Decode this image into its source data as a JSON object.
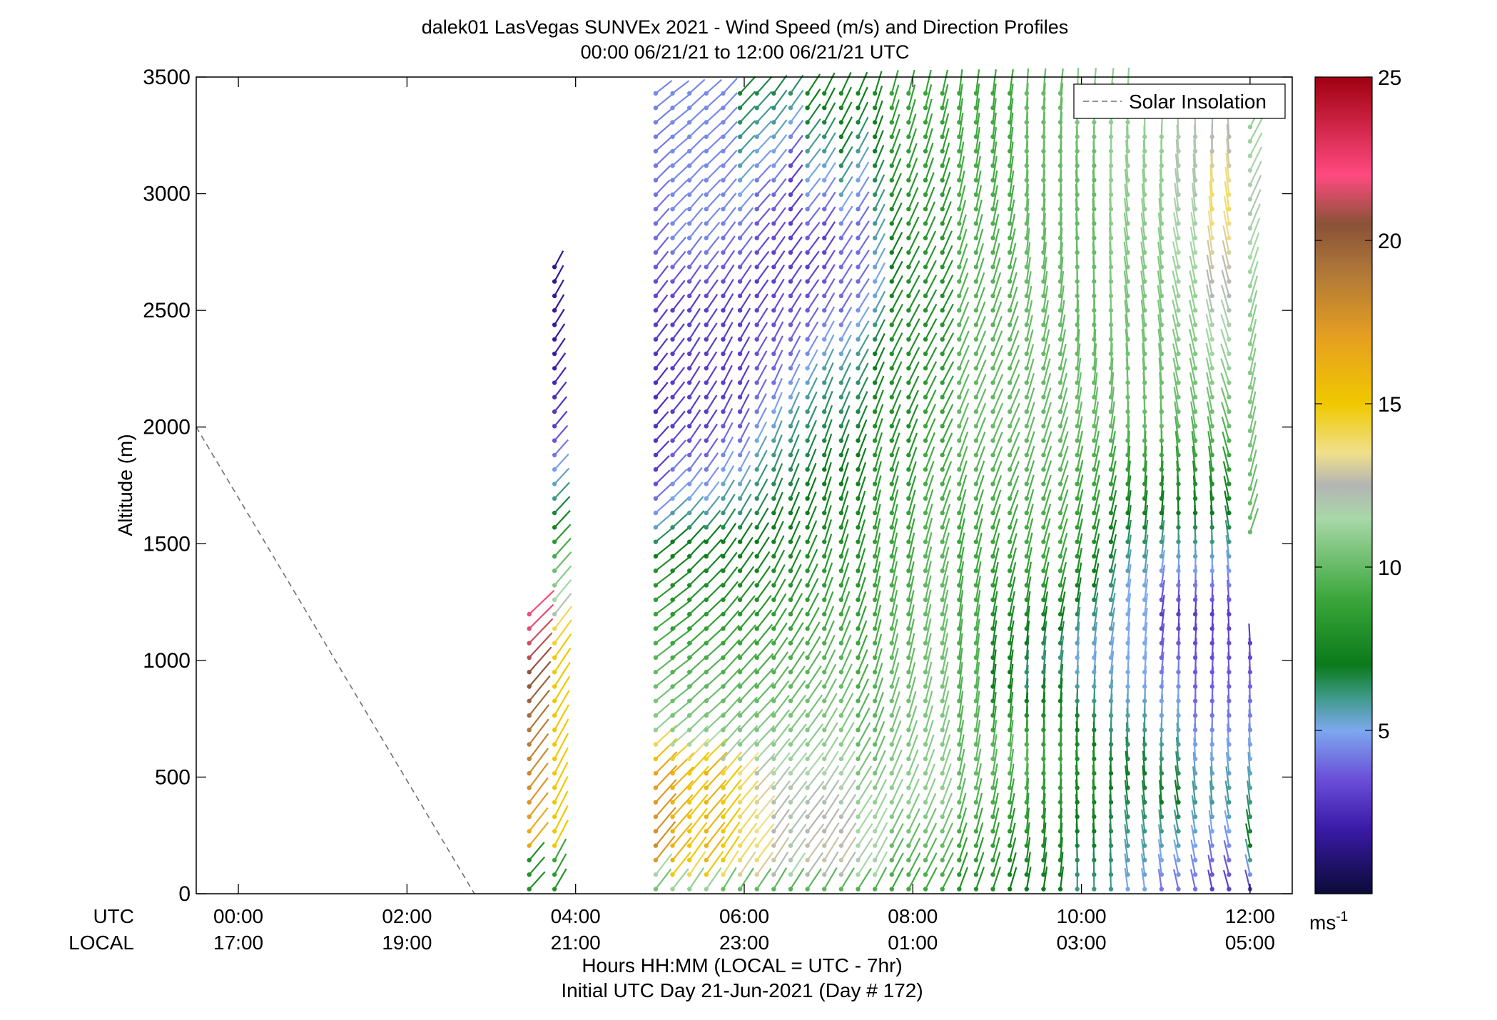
{
  "chart_data": {
    "type": "scatter",
    "title": "dalek01 LasVegas SUNVEx 2021 - Wind Speed (m/s) and Direction Profiles",
    "subtitle": "00:00 06/21/21 to 12:00 06/21/21  UTC",
    "ylabel": "Altitude (m)",
    "xlabel": "Hours HH:MM  (LOCAL = UTC - 7hr)",
    "xlabel2": "Initial UTC Day 21-Jun-2021 (Day # 172)",
    "ylim": [
      0,
      3500
    ],
    "xlim_hours": [
      -0.5,
      12.5
    ],
    "yticks": [
      0,
      500,
      1000,
      1500,
      2000,
      2500,
      3000,
      3500
    ],
    "xticks_hours": [
      0,
      2,
      4,
      6,
      8,
      10,
      12
    ],
    "utc_row_label": "UTC",
    "local_row_label": "LOCAL",
    "utc_tick_labels": [
      "00:00",
      "02:00",
      "04:00",
      "06:00",
      "08:00",
      "10:00",
      "12:00"
    ],
    "local_tick_labels": [
      "17:00",
      "19:00",
      "21:00",
      "23:00",
      "01:00",
      "03:00",
      "05:00"
    ],
    "legend": {
      "label": "Solar Insolation",
      "position": "top-right",
      "style": "dashed",
      "color": "#707070"
    },
    "solar_insolation_line": {
      "x_hours": [
        -0.5,
        2.8
      ],
      "altitude_m": [
        2000,
        0
      ]
    },
    "colorbar": {
      "min": 0,
      "max": 25,
      "ticks": [
        5,
        10,
        15,
        20,
        25
      ],
      "unit_label": "ms",
      "unit_exponent": "-1",
      "colors": [
        {
          "v": 0,
          "c": "#0b0b38"
        },
        {
          "v": 2,
          "c": "#3a1aa8"
        },
        {
          "v": 3.5,
          "c": "#6a4ed8"
        },
        {
          "v": 5,
          "c": "#7da8ee"
        },
        {
          "v": 6,
          "c": "#3f9a8a"
        },
        {
          "v": 7,
          "c": "#0a7a1a"
        },
        {
          "v": 9,
          "c": "#3aa63a"
        },
        {
          "v": 11.5,
          "c": "#a8d8a8"
        },
        {
          "v": 12.5,
          "c": "#b4b4b4"
        },
        {
          "v": 13.5,
          "c": "#f0e08a"
        },
        {
          "v": 15,
          "c": "#f0c800"
        },
        {
          "v": 17,
          "c": "#e6a020"
        },
        {
          "v": 19,
          "c": "#b07838"
        },
        {
          "v": 20.5,
          "c": "#8a5238"
        },
        {
          "v": 22,
          "c": "#ff4a80"
        },
        {
          "v": 25,
          "c": "#a00010"
        }
      ]
    },
    "profiles": [
      {
        "time": 3.45,
        "max_alt": 1210,
        "speed_alt": [
          0,
          150,
          160,
          250,
          300,
          700,
          1000,
          1210
        ],
        "speed": [
          8,
          8,
          17,
          16,
          17,
          19,
          21,
          22
        ],
        "dir_deg": 225
      },
      {
        "time": 3.75,
        "max_alt": 2740,
        "speed_alt": [
          0,
          150,
          200,
          1000,
          1150,
          1200,
          1400,
          1600,
          1800,
          2000,
          2300,
          2740
        ],
        "speed": [
          8,
          9,
          15,
          15,
          14,
          12,
          10,
          7,
          5,
          3,
          2,
          1.5
        ],
        "dir_deg": 215
      },
      {
        "time": 4.95,
        "max_alt": 3480,
        "speed_alt": [
          0,
          100,
          150,
          500,
          650,
          700,
          1400,
          1600,
          1800,
          2100,
          2500,
          2800,
          3500
        ],
        "speed": [
          10,
          12,
          18,
          17,
          14,
          11,
          8,
          5,
          3,
          2.5,
          3,
          4,
          4.5
        ],
        "dir_deg": 225
      },
      {
        "time": 5.15,
        "max_alt": 3480,
        "speed_alt": [
          0,
          100,
          550,
          650,
          1500,
          1700,
          2000,
          2500,
          2800,
          3500
        ],
        "speed": [
          10,
          16,
          16,
          11,
          7,
          5,
          3,
          3,
          4.5,
          4.5
        ],
        "dir_deg": 225
      },
      {
        "time": 5.35,
        "max_alt": 3480,
        "speed_alt": [
          0,
          100,
          550,
          650,
          1500,
          1700,
          2000,
          2500,
          2800,
          3500
        ],
        "speed": [
          10,
          15,
          15,
          11,
          7,
          5,
          3,
          3,
          4.5,
          4.5
        ],
        "dir_deg": 220
      },
      {
        "time": 5.55,
        "max_alt": 3480,
        "speed_alt": [
          0,
          100,
          550,
          650,
          1500,
          1700,
          2000,
          2500,
          2800,
          3500
        ],
        "speed": [
          10,
          16,
          16,
          11,
          7,
          5,
          3,
          3,
          4.5,
          4.5
        ],
        "dir_deg": 220
      },
      {
        "time": 5.75,
        "max_alt": 3480,
        "speed_alt": [
          0,
          100,
          500,
          600,
          1500,
          1800,
          2100,
          2500,
          2900,
          3500
        ],
        "speed": [
          9,
          15,
          15,
          11,
          7,
          5,
          3,
          3,
          4.5,
          4.5
        ],
        "dir_deg": 215
      },
      {
        "time": 5.95,
        "max_alt": 3480,
        "speed_alt": [
          0,
          100,
          500,
          600,
          1500,
          1800,
          2100,
          2500,
          2900,
          3200,
          3500
        ],
        "speed": [
          9,
          14,
          14,
          11,
          7,
          5,
          3,
          3,
          4.5,
          6,
          7
        ],
        "dir_deg": 215
      },
      {
        "time": 6.15,
        "max_alt": 3480,
        "speed_alt": [
          0,
          100,
          450,
          600,
          1500,
          1800,
          2100,
          2600,
          3000,
          3500
        ],
        "speed": [
          9,
          14,
          13,
          11,
          7,
          6,
          4,
          3,
          4,
          7
        ],
        "dir_deg": 215
      },
      {
        "time": 6.35,
        "max_alt": 3480,
        "speed_alt": [
          0,
          100,
          450,
          600,
          1600,
          1900,
          2200,
          2700,
          3000,
          3500
        ],
        "speed": [
          9,
          13,
          12,
          11,
          7,
          6,
          4,
          3,
          4,
          7
        ],
        "dir_deg": 210
      },
      {
        "time": 6.55,
        "max_alt": 3480,
        "speed_alt": [
          0,
          100,
          450,
          600,
          1600,
          2000,
          2300,
          2700,
          3100,
          3500
        ],
        "speed": [
          9,
          12,
          12,
          11,
          7,
          6,
          4,
          3,
          3,
          7
        ],
        "dir_deg": 210
      },
      {
        "time": 6.75,
        "max_alt": 3480,
        "speed_alt": [
          0,
          100,
          450,
          600,
          1700,
          2100,
          2400,
          2700,
          3200,
          3500
        ],
        "speed": [
          9,
          13,
          12,
          11,
          7,
          6,
          4,
          3,
          6,
          8
        ],
        "dir_deg": 210
      },
      {
        "time": 6.95,
        "max_alt": 3480,
        "speed_alt": [
          0,
          100,
          450,
          600,
          1800,
          2200,
          2500,
          2800,
          3200,
          3500
        ],
        "speed": [
          9,
          13,
          12,
          11,
          7,
          6,
          4,
          3,
          6,
          8
        ],
        "dir_deg": 205
      },
      {
        "time": 7.15,
        "max_alt": 3480,
        "speed_alt": [
          0,
          100,
          400,
          600,
          1800,
          2200,
          2500,
          2800,
          3200,
          3500
        ],
        "speed": [
          9,
          13,
          12,
          11,
          7,
          6,
          4,
          4,
          7,
          8
        ],
        "dir_deg": 205
      },
      {
        "time": 7.35,
        "max_alt": 3480,
        "speed_alt": [
          0,
          100,
          400,
          600,
          1900,
          2300,
          2600,
          2900,
          3500
        ],
        "speed": [
          9,
          12,
          11,
          10,
          7,
          6,
          4,
          4,
          8
        ],
        "dir_deg": 205
      },
      {
        "time": 7.55,
        "max_alt": 3480,
        "speed_alt": [
          0,
          100,
          400,
          600,
          2000,
          2300,
          2600,
          2900,
          3500
        ],
        "speed": [
          9,
          12,
          11,
          10,
          8,
          7,
          5,
          6,
          8
        ],
        "dir_deg": 200
      },
      {
        "time": 7.75,
        "max_alt": 3480,
        "speed_alt": [
          0,
          400,
          2000,
          2400,
          2700,
          3000,
          3500
        ],
        "speed": [
          9,
          11,
          8,
          8,
          7,
          8,
          9
        ],
        "dir_deg": 200
      },
      {
        "time": 7.95,
        "max_alt": 3480,
        "speed_alt": [
          0,
          400,
          2000,
          2400,
          2700,
          3500
        ],
        "speed": [
          9,
          11,
          8,
          8,
          8,
          9
        ],
        "dir_deg": 200
      },
      {
        "time": 8.15,
        "max_alt": 3480,
        "speed_alt": [
          0,
          400,
          2000,
          2400,
          3500
        ],
        "speed": [
          9,
          11,
          9,
          8,
          9
        ],
        "dir_deg": 200
      },
      {
        "time": 8.35,
        "max_alt": 3480,
        "speed_alt": [
          0,
          400,
          2000,
          2500,
          3500
        ],
        "speed": [
          9,
          11,
          9,
          8,
          9
        ],
        "dir_deg": 200
      },
      {
        "time": 8.55,
        "max_alt": 3480,
        "speed_alt": [
          0,
          400,
          1500,
          2000,
          3500
        ],
        "speed": [
          8,
          10,
          9,
          10,
          9
        ],
        "dir_deg": 195
      },
      {
        "time": 8.75,
        "max_alt": 3480,
        "speed_alt": [
          0,
          500,
          1500,
          2000,
          3500
        ],
        "speed": [
          8,
          10,
          9,
          10,
          9
        ],
        "dir_deg": 195
      },
      {
        "time": 8.95,
        "max_alt": 3480,
        "speed_alt": [
          0,
          600,
          900,
          1500,
          2000,
          3500
        ],
        "speed": [
          8,
          10,
          7,
          9,
          10,
          9
        ],
        "dir_deg": 195
      },
      {
        "time": 9.15,
        "max_alt": 3480,
        "speed_alt": [
          0,
          600,
          900,
          1500,
          2000,
          3500
        ],
        "speed": [
          7,
          10,
          7,
          9,
          10,
          9
        ],
        "dir_deg": 195
      },
      {
        "time": 9.35,
        "max_alt": 3480,
        "speed_alt": [
          0,
          600,
          900,
          1400,
          2000,
          3500
        ],
        "speed": [
          7,
          10,
          6,
          9,
          10,
          10
        ],
        "dir_deg": 190
      },
      {
        "time": 9.55,
        "max_alt": 3480,
        "speed_alt": [
          0,
          600,
          1000,
          1400,
          2000,
          3500
        ],
        "speed": [
          7,
          9,
          6,
          9,
          10,
          10
        ],
        "dir_deg": 190
      },
      {
        "time": 9.75,
        "max_alt": 3480,
        "speed_alt": [
          0,
          600,
          1000,
          1400,
          2000,
          3500
        ],
        "speed": [
          7,
          9,
          6,
          9,
          10,
          10
        ],
        "dir_deg": 190
      },
      {
        "time": 9.95,
        "max_alt": 3480,
        "speed_alt": [
          0,
          600,
          1000,
          1400,
          2000,
          3100,
          3500
        ],
        "speed": [
          6,
          8,
          5,
          8,
          10,
          10,
          11
        ],
        "dir_deg": 185
      },
      {
        "time": 10.15,
        "max_alt": 3480,
        "speed_alt": [
          0,
          500,
          1000,
          1500,
          2000,
          3100,
          3500
        ],
        "speed": [
          6,
          8,
          5,
          8,
          10,
          10,
          11
        ],
        "dir_deg": 185
      },
      {
        "time": 10.35,
        "max_alt": 3480,
        "speed_alt": [
          0,
          500,
          1000,
          1500,
          2000,
          3100,
          3500
        ],
        "speed": [
          6,
          7,
          5,
          7,
          10,
          11,
          11
        ],
        "dir_deg": 185
      },
      {
        "time": 10.55,
        "max_alt": 3480,
        "speed_alt": [
          0,
          500,
          900,
          1300,
          1600,
          2000,
          3100,
          3500
        ],
        "speed": [
          5,
          7,
          5,
          5,
          7,
          10,
          11,
          11
        ],
        "dir_deg": 180
      },
      {
        "time": 10.75,
        "max_alt": 3300,
        "speed_alt": [
          0,
          500,
          900,
          1300,
          1600,
          2000,
          3000,
          3300
        ],
        "speed": [
          5,
          7,
          5,
          5,
          7,
          10,
          11,
          11
        ],
        "dir_deg": 180
      },
      {
        "time": 10.95,
        "max_alt": 3300,
        "speed_alt": [
          0,
          400,
          800,
          1200,
          1500,
          2000,
          3000,
          3300
        ],
        "speed": [
          4,
          7,
          5,
          3,
          6,
          10,
          11,
          11
        ],
        "dir_deg": 180
      },
      {
        "time": 11.15,
        "max_alt": 3300,
        "speed_alt": [
          0,
          400,
          800,
          1200,
          1500,
          2000,
          3000,
          3300
        ],
        "speed": [
          4,
          7,
          5,
          3,
          6,
          10,
          12,
          12
        ],
        "dir_deg": 175
      },
      {
        "time": 11.35,
        "max_alt": 3300,
        "speed_alt": [
          0,
          400,
          800,
          1200,
          1500,
          2000,
          3000,
          3300
        ],
        "speed": [
          4,
          6,
          4,
          3,
          6,
          10,
          12,
          12
        ],
        "dir_deg": 175
      },
      {
        "time": 11.55,
        "max_alt": 3300,
        "speed_alt": [
          0,
          400,
          800,
          1200,
          1500,
          2000,
          2950,
          3300
        ],
        "speed": [
          3,
          6,
          4,
          3,
          6,
          10,
          14,
          12
        ],
        "dir_deg": 175
      },
      {
        "time": 11.75,
        "max_alt": 3300,
        "speed_alt": [
          0,
          400,
          800,
          1200,
          1500,
          2000,
          2950,
          3300
        ],
        "speed": [
          3,
          6,
          4,
          3,
          6,
          10,
          14,
          12
        ],
        "dir_deg": 170
      },
      {
        "time": 12.0,
        "max_alt": 1090,
        "speed_alt": [
          0,
          200,
          600,
          1090
        ],
        "speed": [
          3,
          7,
          5,
          3
        ],
        "dir_deg": 170
      },
      {
        "time": 12.0,
        "min_alt": 1550,
        "max_alt": 3300,
        "speed_alt": [
          1550,
          2500,
          2950,
          3300
        ],
        "speed": [
          10,
          11,
          12,
          11
        ],
        "dir_deg": 200
      }
    ],
    "grid": false
  }
}
